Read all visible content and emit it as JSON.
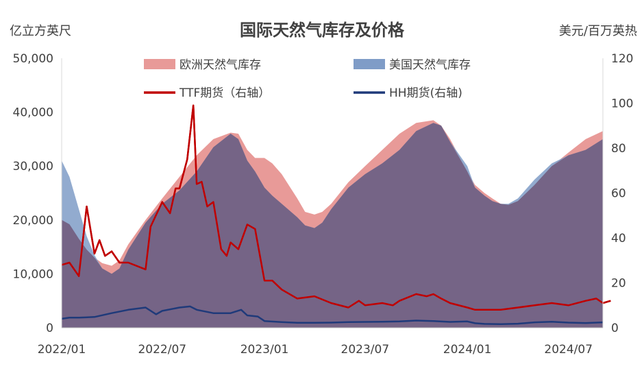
{
  "chart_data": {
    "type": "area",
    "title": "国际天然气库存及价格",
    "ylabel_left": "亿立方英尺",
    "ylabel_right": "美元/百万英热",
    "ylim_left": [
      0,
      50000
    ],
    "ylim_right": [
      0,
      120
    ],
    "yticks_left": [
      "0",
      "10,000",
      "20,000",
      "30,000",
      "40,000",
      "50,000"
    ],
    "yticks_right": [
      "0",
      "20",
      "40",
      "60",
      "80",
      "100",
      "120"
    ],
    "x_range": [
      "2022/01",
      "2024/09"
    ],
    "xticks": [
      "2022/01",
      "2022/07",
      "2023/01",
      "2023/07",
      "2024/01",
      "2024/07"
    ],
    "grid": false,
    "legend_position": "top",
    "series": [
      {
        "name": "欧洲天然气库存",
        "type": "area",
        "axis": "left",
        "color": "#e89a98",
        "points": [
          [
            "2022/01",
            20000
          ],
          [
            "2022/01/15",
            19200
          ],
          [
            "2022/02",
            16500
          ],
          [
            "2022/02/15",
            14500
          ],
          [
            "2022/03",
            13000
          ],
          [
            "2022/03/15",
            12000
          ],
          [
            "2022/04",
            11500
          ],
          [
            "2022/04/15",
            12500
          ],
          [
            "2022/05",
            15500
          ],
          [
            "2022/06",
            20000
          ],
          [
            "2022/07",
            24000
          ],
          [
            "2022/08",
            28000
          ],
          [
            "2022/09",
            32000
          ],
          [
            "2022/10",
            35000
          ],
          [
            "2022/11",
            36200
          ],
          [
            "2022/11/15",
            36000
          ],
          [
            "2022/12",
            33000
          ],
          [
            "2022/12/15",
            31500
          ],
          [
            "2023/01",
            31500
          ],
          [
            "2023/01/15",
            30500
          ],
          [
            "2023/02",
            28500
          ],
          [
            "2023/03",
            24000
          ],
          [
            "2023/03/15",
            21500
          ],
          [
            "2023/04",
            21000
          ],
          [
            "2023/04/15",
            21500
          ],
          [
            "2023/05",
            23000
          ],
          [
            "2023/06",
            27000
          ],
          [
            "2023/07",
            30000
          ],
          [
            "2023/08",
            33000
          ],
          [
            "2023/09",
            36000
          ],
          [
            "2023/10",
            38000
          ],
          [
            "2023/11",
            38500
          ],
          [
            "2023/11/15",
            37500
          ],
          [
            "2023/12",
            35000
          ],
          [
            "2024/01",
            29000
          ],
          [
            "2024/01/15",
            26500
          ],
          [
            "2024/02",
            25000
          ],
          [
            "2024/02/15",
            24000
          ],
          [
            "2024/03",
            23000
          ],
          [
            "2024/03/15",
            22800
          ],
          [
            "2024/04",
            23500
          ],
          [
            "2024/05",
            26500
          ],
          [
            "2024/06",
            30000
          ],
          [
            "2024/07",
            32500
          ],
          [
            "2024/08",
            35000
          ],
          [
            "2024/09",
            36500
          ]
        ]
      },
      {
        "name": "美国天然气库存",
        "type": "area",
        "axis": "left",
        "color": "#7f9cc7",
        "points": [
          [
            "2022/01",
            31000
          ],
          [
            "2022/01/15",
            28000
          ],
          [
            "2022/02",
            22000
          ],
          [
            "2022/02/15",
            17000
          ],
          [
            "2022/03",
            13500
          ],
          [
            "2022/03/15",
            11000
          ],
          [
            "2022/04",
            10000
          ],
          [
            "2022/04/15",
            11000
          ],
          [
            "2022/05",
            14500
          ],
          [
            "2022/06",
            19500
          ],
          [
            "2022/07",
            23000
          ],
          [
            "2022/08",
            25500
          ],
          [
            "2022/09",
            29000
          ],
          [
            "2022/10",
            33500
          ],
          [
            "2022/11",
            36000
          ],
          [
            "2022/11/15",
            35000
          ],
          [
            "2022/12",
            31000
          ],
          [
            "2022/12/15",
            29000
          ],
          [
            "2023/01",
            26000
          ],
          [
            "2023/01/15",
            24500
          ],
          [
            "2023/02",
            23000
          ],
          [
            "2023/03",
            20500
          ],
          [
            "2023/03/15",
            19000
          ],
          [
            "2023/04",
            18500
          ],
          [
            "2023/04/15",
            19500
          ],
          [
            "2023/05",
            22000
          ],
          [
            "2023/06",
            26000
          ],
          [
            "2023/07",
            28500
          ],
          [
            "2023/08",
            30500
          ],
          [
            "2023/09",
            33000
          ],
          [
            "2023/10",
            36500
          ],
          [
            "2023/11",
            38000
          ],
          [
            "2023/11/15",
            37500
          ],
          [
            "2023/12",
            34500
          ],
          [
            "2024/01",
            30000
          ],
          [
            "2024/01/15",
            26000
          ],
          [
            "2024/02",
            24500
          ],
          [
            "2024/02/15",
            23500
          ],
          [
            "2024/03",
            23000
          ],
          [
            "2024/03/15",
            23000
          ],
          [
            "2024/04",
            24000
          ],
          [
            "2024/05",
            27500
          ],
          [
            "2024/06",
            30500
          ],
          [
            "2024/07",
            32000
          ],
          [
            "2024/08",
            33000
          ],
          [
            "2024/09",
            35000
          ]
        ]
      },
      {
        "name": "TTF期货（右轴）",
        "type": "line",
        "axis": "right",
        "color": "#c00000",
        "points": [
          [
            "2022/01",
            28
          ],
          [
            "2022/01/15",
            29
          ],
          [
            "2022/02",
            23
          ],
          [
            "2022/02/15",
            54
          ],
          [
            "2022/03",
            33
          ],
          [
            "2022/03/10",
            39
          ],
          [
            "2022/03/20",
            32
          ],
          [
            "2022/04",
            34
          ],
          [
            "2022/04/15",
            29
          ],
          [
            "2022/05",
            29
          ],
          [
            "2022/06",
            26
          ],
          [
            "2022/06/10",
            45
          ],
          [
            "2022/07",
            56
          ],
          [
            "2022/07/15",
            51
          ],
          [
            "2022/07/25",
            62
          ],
          [
            "2022/08",
            62
          ],
          [
            "2022/08/15",
            75
          ],
          [
            "2022/08/26",
            99
          ],
          [
            "2022/09",
            64
          ],
          [
            "2022/09/10",
            65
          ],
          [
            "2022/09/20",
            54
          ],
          [
            "2022/10",
            56
          ],
          [
            "2022/10/15",
            35
          ],
          [
            "2022/10/25",
            32
          ],
          [
            "2022/11",
            38
          ],
          [
            "2022/11/15",
            35
          ],
          [
            "2022/12",
            46
          ],
          [
            "2022/12/15",
            44
          ],
          [
            "2023/01",
            21
          ],
          [
            "2023/01/15",
            21
          ],
          [
            "2023/02",
            17
          ],
          [
            "2023/03",
            13
          ],
          [
            "2023/04",
            14
          ],
          [
            "2023/05",
            11
          ],
          [
            "2023/06",
            9
          ],
          [
            "2023/06/20",
            12
          ],
          [
            "2023/07",
            10
          ],
          [
            "2023/08",
            11
          ],
          [
            "2023/08/20",
            10
          ],
          [
            "2023/09",
            12
          ],
          [
            "2023/10",
            15
          ],
          [
            "2023/10/20",
            14
          ],
          [
            "2023/11",
            15
          ],
          [
            "2023/11/15",
            13
          ],
          [
            "2023/12",
            11
          ],
          [
            "2024/01",
            9
          ],
          [
            "2024/01/15",
            8
          ],
          [
            "2024/02",
            8
          ],
          [
            "2024/03",
            8
          ],
          [
            "2024/04",
            9
          ],
          [
            "2024/05",
            10
          ],
          [
            "2024/06",
            11
          ],
          [
            "2024/07",
            10
          ],
          [
            "2024/08",
            12
          ],
          [
            "2024/08/20",
            13
          ],
          [
            "2024/09",
            11
          ],
          [
            "2024/09/15",
            12
          ]
        ]
      },
      {
        "name": "HH期货(右轴)",
        "type": "line",
        "axis": "right",
        "color": "#1f3a7a",
        "points": [
          [
            "2022/01",
            4
          ],
          [
            "2022/01/15",
            4.5
          ],
          [
            "2022/02",
            4.5
          ],
          [
            "2022/03",
            4.8
          ],
          [
            "2022/04",
            6.5
          ],
          [
            "2022/05",
            8
          ],
          [
            "2022/06",
            9
          ],
          [
            "2022/06/20",
            6
          ],
          [
            "2022/07",
            7.5
          ],
          [
            "2022/08",
            9
          ],
          [
            "2022/08/20",
            9.5
          ],
          [
            "2022/09",
            8
          ],
          [
            "2022/10",
            6.5
          ],
          [
            "2022/11",
            6.5
          ],
          [
            "2022/11/20",
            8
          ],
          [
            "2022/12",
            5.5
          ],
          [
            "2022/12/20",
            5
          ],
          [
            "2023/01",
            3
          ],
          [
            "2023/02",
            2.5
          ],
          [
            "2023/03",
            2.2
          ],
          [
            "2023/04",
            2.2
          ],
          [
            "2023/05",
            2.3
          ],
          [
            "2023/06",
            2.5
          ],
          [
            "2023/07",
            2.6
          ],
          [
            "2023/08",
            2.7
          ],
          [
            "2023/09",
            2.8
          ],
          [
            "2023/10",
            3.2
          ],
          [
            "2023/11",
            3.0
          ],
          [
            "2023/12",
            2.6
          ],
          [
            "2024/01",
            2.8
          ],
          [
            "2024/01/15",
            2.0
          ],
          [
            "2024/02",
            1.7
          ],
          [
            "2024/03",
            1.6
          ],
          [
            "2024/04",
            1.8
          ],
          [
            "2024/05",
            2.4
          ],
          [
            "2024/06",
            2.7
          ],
          [
            "2024/07",
            2.3
          ],
          [
            "2024/08",
            2.1
          ],
          [
            "2024/09",
            2.4
          ]
        ]
      }
    ]
  }
}
